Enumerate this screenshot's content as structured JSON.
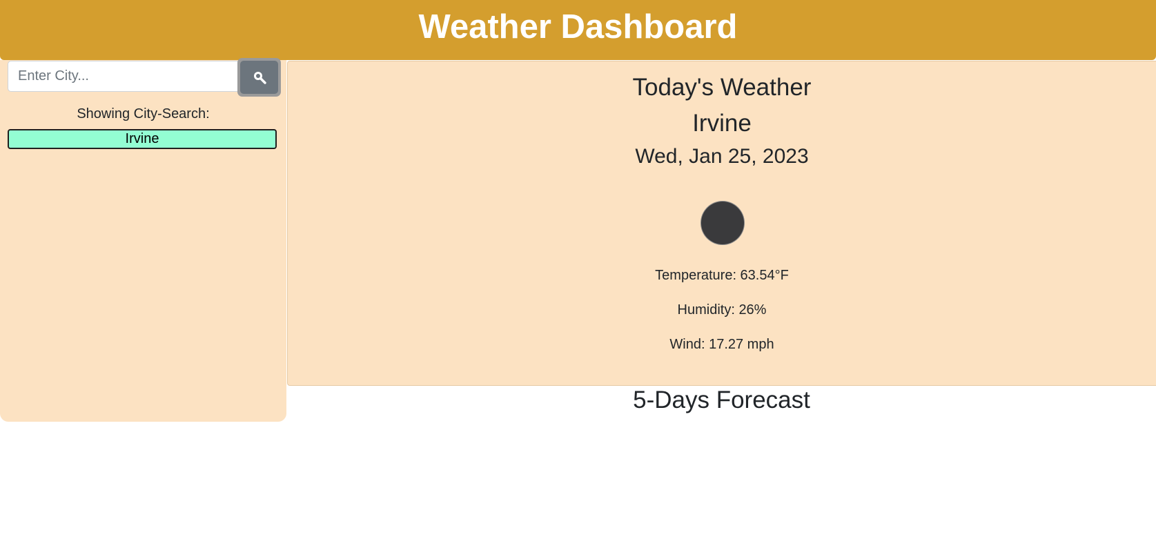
{
  "header": {
    "title": "Weather Dashboard"
  },
  "search": {
    "placeholder": "Enter City...",
    "value": "",
    "button_icon": "search-icon"
  },
  "sidebar": {
    "showing_label": "Showing City-Search:",
    "cities": [
      {
        "label": "Irvine"
      }
    ]
  },
  "today": {
    "title": "Today's Weather",
    "city": "Irvine",
    "date": "Wed, Jan 25, 2023",
    "icon": "weather-icon",
    "temperature": "Temperature: 63.54°F",
    "humidity": "Humidity: 26%",
    "wind": "Wind: 17.27 mph"
  },
  "forecast": {
    "title": "5-Days Forecast"
  },
  "colors": {
    "header_bg": "#d49e2e",
    "panel_bg": "#fce2c2",
    "city_button_bg": "#93fdd3",
    "search_button_bg": "#6c757d"
  }
}
